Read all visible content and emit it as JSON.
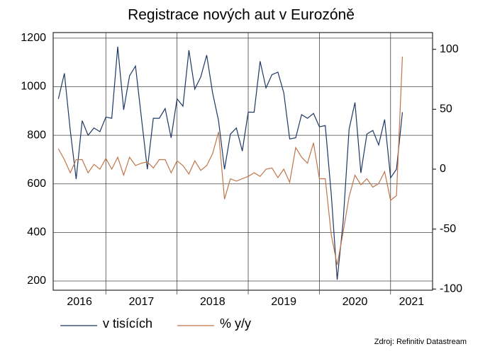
{
  "chart_data": {
    "type": "line",
    "title": "Registrace nových aut v Eurozóně",
    "source": "Zdroj: Refinitiv Datastream",
    "x": [
      2016.333,
      2016.417,
      2016.5,
      2016.583,
      2016.667,
      2016.75,
      2016.833,
      2016.917,
      2017.0,
      2017.083,
      2017.167,
      2017.25,
      2017.333,
      2017.417,
      2017.5,
      2017.583,
      2017.667,
      2017.75,
      2017.833,
      2017.917,
      2018.0,
      2018.083,
      2018.167,
      2018.25,
      2018.333,
      2018.417,
      2018.5,
      2018.583,
      2018.667,
      2018.75,
      2018.833,
      2018.917,
      2019.0,
      2019.083,
      2019.167,
      2019.25,
      2019.333,
      2019.417,
      2019.5,
      2019.583,
      2019.667,
      2019.75,
      2019.833,
      2019.917,
      2020.0,
      2020.083,
      2020.167,
      2020.25,
      2020.333,
      2020.417,
      2020.5,
      2020.583,
      2020.667,
      2020.75,
      2020.833,
      2020.917,
      2021.0,
      2021.083,
      2021.167
    ],
    "xlim": [
      2016.26,
      2021.59
    ],
    "xticks": [
      2017,
      2018,
      2019,
      2020,
      2021
    ],
    "year_labels": [
      "2016",
      "2017",
      "2018",
      "2019",
      "2020",
      "2021"
    ],
    "series": [
      {
        "name": "v tisících",
        "color": "#1f3864",
        "axis": "y",
        "values": [
          950,
          1055,
          820,
          620,
          860,
          800,
          830,
          815,
          875,
          870,
          1165,
          905,
          1045,
          1085,
          870,
          660,
          870,
          870,
          910,
          790,
          950,
          920,
          1150,
          990,
          1040,
          1130,
          975,
          860,
          660,
          805,
          830,
          735,
          895,
          895,
          1105,
          995,
          1050,
          1060,
          975,
          785,
          790,
          885,
          870,
          890,
          835,
          840,
          555,
          205,
          440,
          825,
          935,
          645,
          805,
          820,
          760,
          865,
          625,
          660,
          895
        ]
      },
      {
        "name": "% y/y",
        "color": "#c0764a",
        "axis": "y2",
        "values": [
          17,
          8,
          -3,
          8,
          8,
          -3,
          4,
          0,
          9,
          0,
          10,
          -5,
          10,
          3,
          5,
          6,
          1,
          8,
          8,
          -3,
          7,
          3,
          -4,
          7,
          -1,
          3,
          13,
          31,
          -25,
          -8,
          -10,
          -8,
          -6,
          -3,
          -6,
          0,
          1,
          -7,
          0,
          -11,
          18,
          10,
          5,
          22,
          -8,
          -8,
          -55,
          -80,
          -53,
          -23,
          -5,
          -13,
          -8,
          -15,
          -12,
          -2,
          -26,
          -22,
          94
        ]
      }
    ],
    "ylim": [
      162,
      1223
    ],
    "yticks": [
      200,
      400,
      600,
      800,
      1000,
      1200
    ],
    "y2lim": [
      -101,
      114
    ],
    "y2ticks": [
      -100,
      -50,
      0,
      50,
      100
    ],
    "grid": true
  }
}
